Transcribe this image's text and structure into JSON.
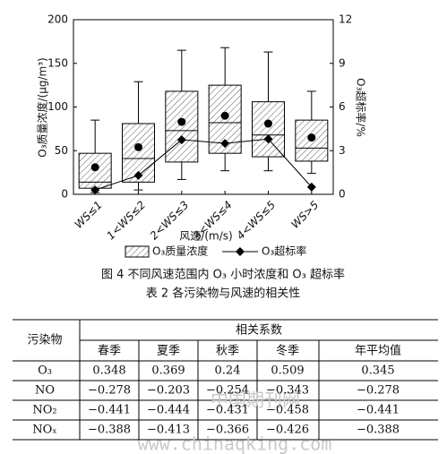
{
  "chart_data": {
    "type": "box",
    "categories": [
      "WS≤1",
      "1<WS≤2",
      "2<WS≤3",
      "3<WS≤4",
      "4<WS≤5",
      "WS>5"
    ],
    "series": [
      {
        "name": "O₃质量浓度",
        "type": "box",
        "color": "#000000",
        "min": [
          2,
          5,
          17,
          27,
          27,
          24
        ],
        "q1": [
          7,
          14,
          37,
          47,
          43,
          38
        ],
        "median": [
          14,
          41,
          73,
          82,
          68,
          53
        ],
        "q3": [
          47,
          81,
          118,
          125,
          106,
          85
        ],
        "max": [
          85,
          129,
          165,
          168,
          163,
          118
        ],
        "mean": [
          31,
          54,
          83,
          90,
          81,
          65
        ]
      },
      {
        "name": "O₃超标率",
        "type": "line",
        "axis": "y2",
        "color": "#000000",
        "values": [
          0.3,
          1.3,
          3.75,
          3.5,
          3.8,
          0.5
        ]
      }
    ],
    "xlabel": "风速/(m/s)",
    "ylabel": "O₃质量浓度/(μg/m³)",
    "y2label": "O₃超标率/%",
    "ylim": [
      0,
      200
    ],
    "yticks": [
      0,
      50,
      100,
      150,
      200
    ],
    "y2lim": [
      0,
      12
    ],
    "y2ticks": [
      0,
      3,
      6,
      9,
      12
    ],
    "legend": "bottom"
  },
  "figure_caption": "图 4 不同风速范围内 O₃ 小时浓度和 O₃ 超标率",
  "table_caption": "表 2   各污染物与风速的相关性",
  "table": {
    "header": [
      "污染物",
      "相关系数"
    ],
    "subheader": [
      "春季",
      "夏季",
      "秋季",
      "冬季",
      "年平均值"
    ],
    "rows": [
      [
        "O₃",
        "0.348",
        "0.369",
        "0.24",
        "0.509",
        "0.345"
      ],
      [
        "NO",
        "−0.278",
        "−0.203",
        "−0.254",
        "−0.343",
        "−0.278"
      ],
      [
        "NO₂",
        "−0.441",
        "−0.444",
        "−0.431",
        "−0.458",
        "−0.441"
      ],
      [
        "NOₓ",
        "−0.388",
        "−0.413",
        "−0.366",
        "−0.426",
        "−0.388"
      ]
    ]
  },
  "watermark": [
    "中国期刊网",
    "www.chinaqking.com"
  ]
}
